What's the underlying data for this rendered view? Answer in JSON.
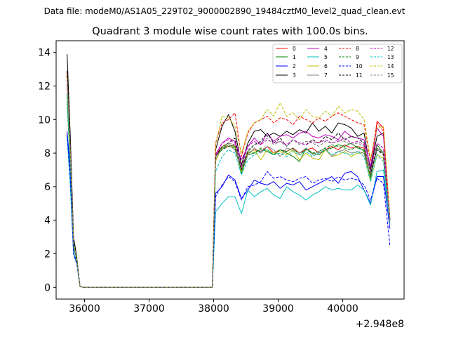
{
  "header": {
    "data_file": "Data file: modeM0/AS1A05_229T02_9000002890_19484cztM0_level2_quad_clean.evt"
  },
  "chart_data": {
    "type": "line",
    "title": "Quadrant 3 module wise count rates with 100.0s bins.",
    "xlabel": "",
    "ylabel": "",
    "x_offset_label": "+2.948e8",
    "xlim": [
      35560,
      40950
    ],
    "ylim": [
      -0.7,
      14.7
    ],
    "x_ticks": [
      36000,
      37000,
      38000,
      39000,
      40000
    ],
    "x_tick_labels": [
      "36000",
      "37000",
      "38000",
      "39000",
      "40000"
    ],
    "y_ticks": [
      0,
      2,
      4,
      6,
      8,
      10,
      12,
      14
    ],
    "y_tick_labels": [
      "0",
      "2",
      "4",
      "6",
      "8",
      "10",
      "12",
      "14"
    ],
    "grid": false,
    "legend_position": "top-right",
    "x": [
      35730,
      35780,
      35830,
      35880,
      35930,
      35980,
      36030,
      36130,
      36230,
      36330,
      36430,
      36530,
      36630,
      36730,
      36830,
      36930,
      37030,
      37130,
      37230,
      37330,
      37430,
      37530,
      37630,
      37730,
      37830,
      37930,
      37980,
      38030,
      38130,
      38230,
      38330,
      38430,
      38530,
      38630,
      38730,
      38830,
      38930,
      39030,
      39130,
      39230,
      39330,
      39430,
      39530,
      39630,
      39730,
      39830,
      39930,
      40030,
      40130,
      40230,
      40330,
      40430,
      40530,
      40630,
      40730
    ],
    "series": [
      {
        "name": "0",
        "color": "#ff0000",
        "dash": false,
        "values": [
          12.8,
          8.0,
          2.6,
          1.5,
          0.05,
          0,
          0,
          0,
          0,
          0,
          0,
          0,
          0,
          0,
          0,
          0,
          0,
          0,
          0,
          0,
          0,
          0,
          0,
          0,
          0,
          0,
          0,
          8.0,
          8.3,
          8.4,
          8.5,
          7.2,
          8.0,
          8.2,
          8.1,
          8.4,
          8.0,
          8.2,
          8.1,
          8.3,
          8.0,
          8.2,
          8.3,
          8.0,
          8.2,
          8.4,
          8.2,
          8.5,
          8.3,
          8.4,
          8.3,
          6.5,
          9.9,
          9.5,
          4.0
        ]
      },
      {
        "name": "1",
        "color": "#008000",
        "dash": false,
        "values": [
          11.5,
          7.5,
          2.5,
          1.5,
          0.05,
          0,
          0,
          0,
          0,
          0,
          0,
          0,
          0,
          0,
          0,
          0,
          0,
          0,
          0,
          0,
          0,
          0,
          0,
          0,
          0,
          0,
          0,
          7.8,
          8.3,
          8.5,
          8.4,
          6.8,
          7.9,
          8.0,
          8.2,
          8.1,
          7.9,
          8.2,
          8.0,
          7.8,
          7.5,
          8.3,
          8.0,
          7.9,
          8.2,
          8.3,
          8.5,
          8.4,
          8.6,
          8.3,
          8.2,
          6.5,
          8.5,
          8.0,
          4.0
        ]
      },
      {
        "name": "2",
        "color": "#0000ff",
        "dash": false,
        "values": [
          9.3,
          7.0,
          2.0,
          1.5,
          0.05,
          0,
          0,
          0,
          0,
          0,
          0,
          0,
          0,
          0,
          0,
          0,
          0,
          0,
          0,
          0,
          0,
          0,
          0,
          0,
          0,
          0,
          0,
          5.6,
          6.0,
          6.7,
          6.4,
          5.3,
          5.8,
          6.4,
          6.2,
          6.1,
          6.3,
          5.9,
          6.2,
          6.1,
          6.3,
          5.8,
          6.0,
          6.2,
          6.4,
          6.6,
          6.2,
          6.8,
          6.9,
          6.6,
          5.8,
          5.0,
          6.6,
          6.6,
          3.5
        ]
      },
      {
        "name": "3",
        "color": "#000000",
        "dash": false,
        "values": [
          13.9,
          9.0,
          3.0,
          1.8,
          0.05,
          0,
          0,
          0,
          0,
          0,
          0,
          0,
          0,
          0,
          0,
          0,
          0,
          0,
          0,
          0,
          0,
          0,
          0,
          0,
          0,
          0,
          0,
          8.2,
          9.6,
          10.3,
          9.3,
          7.3,
          8.6,
          9.3,
          9.4,
          9.0,
          9.2,
          9.0,
          9.3,
          9.1,
          9.4,
          9.2,
          9.8,
          9.3,
          9.6,
          9.2,
          9.8,
          9.7,
          9.5,
          9.0,
          9.2,
          7.0,
          9.0,
          9.2,
          4.0
        ]
      },
      {
        "name": "4",
        "color": "#bf00bf",
        "dash": false,
        "values": [
          12.4,
          8.4,
          2.7,
          1.6,
          0.05,
          0,
          0,
          0,
          0,
          0,
          0,
          0,
          0,
          0,
          0,
          0,
          0,
          0,
          0,
          0,
          0,
          0,
          0,
          0,
          0,
          0,
          0,
          7.9,
          8.6,
          8.9,
          8.7,
          7.6,
          8.4,
          8.9,
          8.5,
          9.2,
          8.7,
          9.0,
          9.1,
          8.9,
          9.2,
          9.3,
          9.0,
          8.9,
          9.1,
          9.0,
          8.8,
          9.3,
          9.0,
          8.9,
          8.8,
          7.2,
          9.5,
          9.0,
          4.0
        ]
      },
      {
        "name": "5",
        "color": "#00bfbf",
        "dash": false,
        "values": [
          9.0,
          6.0,
          2.0,
          1.4,
          0.05,
          0,
          0,
          0,
          0,
          0,
          0,
          0,
          0,
          0,
          0,
          0,
          0,
          0,
          0,
          0,
          0,
          0,
          0,
          0,
          0,
          0,
          0,
          4.5,
          5.0,
          5.4,
          5.4,
          4.4,
          5.8,
          5.4,
          5.7,
          5.9,
          5.5,
          5.3,
          6.0,
          5.7,
          5.5,
          5.2,
          5.5,
          5.7,
          6.0,
          5.8,
          5.9,
          5.8,
          5.8,
          6.1,
          5.8,
          4.9,
          6.9,
          7.0,
          3.8
        ]
      },
      {
        "name": "6",
        "color": "#bfbf00",
        "dash": false,
        "values": [
          12.0,
          8.0,
          2.6,
          1.6,
          0.05,
          0,
          0,
          0,
          0,
          0,
          0,
          0,
          0,
          0,
          0,
          0,
          0,
          0,
          0,
          0,
          0,
          0,
          0,
          0,
          0,
          0,
          0,
          7.5,
          8.4,
          8.5,
          8.3,
          6.9,
          8.0,
          8.2,
          7.6,
          8.2,
          8.0,
          8.1,
          7.9,
          8.2,
          7.6,
          8.0,
          7.7,
          7.6,
          8.2,
          7.8,
          7.9,
          8.1,
          7.8,
          8.0,
          8.0,
          6.3,
          7.9,
          7.7,
          3.9
        ]
      },
      {
        "name": "7",
        "color": "#808080",
        "dash": false,
        "values": [
          12.2,
          8.1,
          2.6,
          1.6,
          0.05,
          0,
          0,
          0,
          0,
          0,
          0,
          0,
          0,
          0,
          0,
          0,
          0,
          0,
          0,
          0,
          0,
          0,
          0,
          0,
          0,
          0,
          0,
          7.8,
          8.2,
          8.5,
          8.2,
          7.0,
          7.9,
          8.3,
          8.0,
          8.4,
          8.2,
          7.8,
          8.3,
          8.2,
          8.0,
          8.3,
          7.9,
          8.1,
          8.3,
          7.8,
          8.1,
          8.2,
          8.0,
          8.1,
          8.0,
          6.6,
          8.3,
          8.0,
          4.0
        ]
      },
      {
        "name": "8",
        "color": "#ff0000",
        "dash": true,
        "values": [
          12.6,
          8.3,
          2.7,
          1.6,
          0.05,
          0,
          0,
          0,
          0,
          0,
          0,
          0,
          0,
          0,
          0,
          0,
          0,
          0,
          0,
          0,
          0,
          0,
          0,
          0,
          0,
          0,
          0,
          8.6,
          9.8,
          10.0,
          10.4,
          7.8,
          9.2,
          9.8,
          10.0,
          10.2,
          9.8,
          10.1,
          10.0,
          9.7,
          10.2,
          10.0,
          9.8,
          10.1,
          9.9,
          10.2,
          10.4,
          10.2,
          10.0,
          9.8,
          9.7,
          7.5,
          9.8,
          9.3,
          4.2
        ]
      },
      {
        "name": "9",
        "color": "#008000",
        "dash": true,
        "values": [
          11.0,
          7.2,
          2.4,
          1.5,
          0.05,
          0,
          0,
          0,
          0,
          0,
          0,
          0,
          0,
          0,
          0,
          0,
          0,
          0,
          0,
          0,
          0,
          0,
          0,
          0,
          0,
          0,
          0,
          7.8,
          8.2,
          8.4,
          8.3,
          7.0,
          8.1,
          8.0,
          8.3,
          8.2,
          7.9,
          8.2,
          8.1,
          8.3,
          7.9,
          8.2,
          8.0,
          8.1,
          8.3,
          8.5,
          8.4,
          8.3,
          8.2,
          8.4,
          8.1,
          6.6,
          8.2,
          8.0,
          4.0
        ]
      },
      {
        "name": "10",
        "color": "#0000ff",
        "dash": true,
        "values": [
          9.1,
          6.5,
          2.0,
          1.4,
          0.05,
          0,
          0,
          0,
          0,
          0,
          0,
          0,
          0,
          0,
          0,
          0,
          0,
          0,
          0,
          0,
          0,
          0,
          0,
          0,
          0,
          0,
          0,
          5.4,
          6.1,
          6.6,
          6.3,
          5.2,
          6.0,
          6.1,
          6.3,
          6.9,
          6.5,
          6.6,
          6.4,
          6.3,
          6.5,
          6.6,
          6.2,
          6.4,
          6.5,
          6.3,
          6.6,
          6.4,
          6.5,
          6.4,
          6.1,
          5.2,
          6.5,
          6.2,
          2.5
        ]
      },
      {
        "name": "11",
        "color": "#000000",
        "dash": true,
        "values": [
          12.9,
          8.5,
          2.8,
          1.7,
          0.05,
          0,
          0,
          0,
          0,
          0,
          0,
          0,
          0,
          0,
          0,
          0,
          0,
          0,
          0,
          0,
          0,
          0,
          0,
          0,
          0,
          0,
          0,
          7.8,
          8.4,
          8.6,
          8.9,
          7.0,
          8.1,
          8.5,
          8.7,
          9.2,
          8.6,
          8.9,
          8.4,
          8.8,
          8.6,
          8.5,
          8.8,
          8.6,
          9.0,
          8.8,
          9.2,
          8.8,
          9.0,
          8.9,
          8.6,
          6.8,
          8.2,
          7.9,
          4.0
        ]
      },
      {
        "name": "12",
        "color": "#bf00bf",
        "dash": true,
        "values": [
          12.0,
          7.9,
          2.6,
          1.6,
          0.05,
          0,
          0,
          0,
          0,
          0,
          0,
          0,
          0,
          0,
          0,
          0,
          0,
          0,
          0,
          0,
          0,
          0,
          0,
          0,
          0,
          0,
          0,
          7.8,
          8.6,
          8.8,
          8.6,
          7.2,
          8.4,
          8.7,
          8.5,
          8.8,
          8.6,
          8.7,
          8.5,
          8.8,
          8.6,
          8.5,
          8.7,
          8.6,
          8.8,
          8.6,
          8.7,
          8.9,
          8.6,
          8.7,
          8.5,
          6.9,
          8.6,
          8.3,
          4.0
        ]
      },
      {
        "name": "13",
        "color": "#00bfbf",
        "dash": true,
        "values": [
          11.5,
          7.5,
          2.5,
          1.5,
          0.05,
          0,
          0,
          0,
          0,
          0,
          0,
          0,
          0,
          0,
          0,
          0,
          0,
          0,
          0,
          0,
          0,
          0,
          0,
          0,
          0,
          0,
          0,
          6.9,
          7.8,
          8.2,
          8.0,
          6.7,
          7.6,
          7.9,
          8.1,
          8.2,
          7.9,
          8.0,
          7.8,
          8.1,
          7.9,
          8.1,
          7.8,
          8.0,
          8.2,
          7.9,
          8.1,
          8.0,
          7.9,
          8.1,
          7.8,
          6.3,
          7.9,
          7.5,
          3.8
        ]
      },
      {
        "name": "14",
        "color": "#bfbf00",
        "dash": true,
        "values": [
          12.5,
          8.2,
          2.7,
          1.7,
          0.05,
          0,
          0,
          0,
          0,
          0,
          0,
          0,
          0,
          0,
          0,
          0,
          0,
          0,
          0,
          0,
          0,
          0,
          0,
          0,
          0,
          0,
          0,
          8.5,
          10.2,
          10.1,
          9.6,
          8.0,
          9.3,
          9.8,
          10.0,
          10.6,
          10.2,
          11.0,
          10.2,
          10.4,
          10.0,
          10.6,
          10.2,
          10.1,
          10.5,
          10.2,
          10.8,
          10.4,
          10.6,
          10.5,
          10.0,
          7.6,
          9.5,
          9.6,
          4.2
        ]
      },
      {
        "name": "15",
        "color": "#808080",
        "dash": true,
        "values": [
          12.3,
          8.1,
          2.6,
          1.6,
          0.05,
          0,
          0,
          0,
          0,
          0,
          0,
          0,
          0,
          0,
          0,
          0,
          0,
          0,
          0,
          0,
          0,
          0,
          0,
          0,
          0,
          0,
          0,
          7.6,
          8.4,
          8.6,
          8.5,
          7.1,
          8.2,
          8.5,
          8.6,
          8.9,
          8.5,
          8.7,
          8.4,
          8.8,
          8.5,
          8.7,
          8.6,
          8.4,
          8.7,
          8.6,
          8.8,
          8.7,
          8.5,
          8.6,
          8.4,
          6.9,
          8.3,
          8.1,
          4.0
        ]
      }
    ]
  }
}
